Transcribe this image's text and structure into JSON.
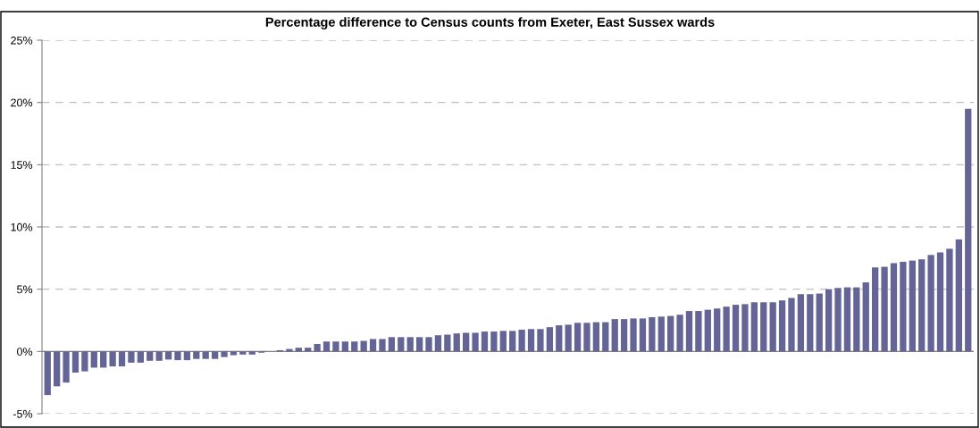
{
  "chart_data": {
    "type": "bar",
    "title": "Percentage difference to Census counts from Exeter, East Sussex wards",
    "categories": [
      null,
      null,
      null,
      null,
      null,
      null,
      null,
      null,
      null,
      null,
      null,
      null,
      null,
      null,
      null,
      null,
      null,
      null,
      null,
      null,
      null,
      null,
      null,
      null,
      null,
      null,
      null,
      null,
      null,
      null,
      null,
      null,
      null,
      null,
      null,
      null,
      null,
      null,
      null,
      null,
      null,
      null,
      null,
      null,
      null,
      null,
      null,
      null,
      null,
      null,
      null,
      null,
      null,
      null,
      null,
      null,
      null,
      null,
      null,
      null,
      null,
      null,
      null,
      null,
      null,
      null,
      null,
      null,
      null,
      null,
      null,
      null,
      null,
      null,
      null,
      null,
      null,
      null,
      null,
      null,
      null,
      null,
      null,
      null,
      null,
      null,
      null,
      null,
      null,
      null,
      null,
      null,
      null,
      null,
      null,
      null,
      null,
      null,
      null,
      null
    ],
    "values": [
      -3.5,
      -2.8,
      -2.5,
      -1.7,
      -1.6,
      -1.3,
      -1.3,
      -1.2,
      -1.2,
      -0.9,
      -0.9,
      -0.75,
      -0.75,
      -0.65,
      -0.7,
      -0.7,
      -0.6,
      -0.6,
      -0.6,
      -0.45,
      -0.3,
      -0.25,
      -0.25,
      -0.1,
      0,
      0.1,
      0.2,
      0.3,
      0.3,
      0.6,
      0.8,
      0.8,
      0.8,
      0.8,
      0.85,
      1.0,
      1.0,
      1.15,
      1.15,
      1.15,
      1.15,
      1.15,
      1.3,
      1.35,
      1.45,
      1.5,
      1.5,
      1.6,
      1.6,
      1.65,
      1.65,
      1.75,
      1.8,
      1.8,
      1.95,
      2.1,
      2.15,
      2.3,
      2.3,
      2.35,
      2.35,
      2.6,
      2.6,
      2.65,
      2.65,
      2.75,
      2.8,
      2.85,
      2.95,
      3.25,
      3.25,
      3.35,
      3.45,
      3.6,
      3.75,
      3.8,
      3.95,
      3.95,
      3.95,
      4.1,
      4.3,
      4.6,
      4.6,
      4.65,
      5.0,
      5.1,
      5.15,
      5.15,
      5.55,
      6.75,
      6.8,
      7.1,
      7.2,
      7.3,
      7.4,
      7.75,
      7.95,
      8.25,
      9.0,
      19.5
    ],
    "color": "#646496",
    "ylim": [
      -5,
      25
    ],
    "yticks": [
      {
        "value": -5,
        "label": "-5%"
      },
      {
        "value": 0,
        "label": "0%"
      },
      {
        "value": 5,
        "label": "5%"
      },
      {
        "value": 10,
        "label": "10%"
      },
      {
        "value": 15,
        "label": "15%"
      },
      {
        "value": 20,
        "label": "20%"
      },
      {
        "value": 25,
        "label": "25%"
      }
    ],
    "grid": "y",
    "tick_labels": "y"
  }
}
